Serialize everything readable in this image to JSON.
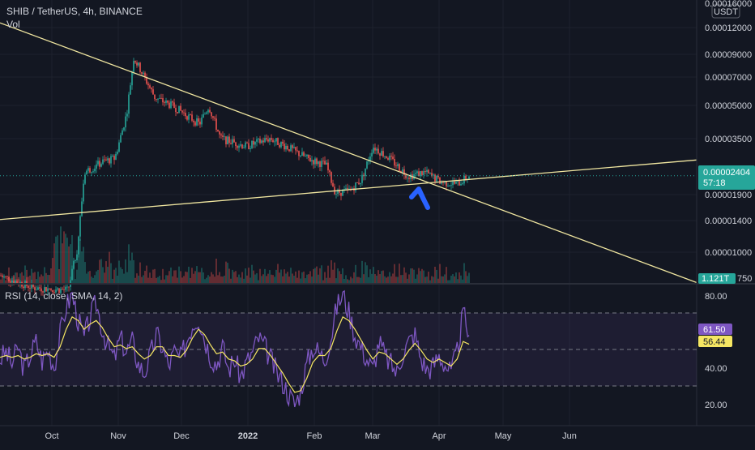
{
  "header": {
    "symbol": "SHIB / TetherUS, 4h, BINANCE",
    "volume_label": "Vol",
    "currency_button": "USDT"
  },
  "colors": {
    "background": "#131722",
    "up": "#26a69a",
    "down": "#ef5350",
    "trendline": "#f0e6a0",
    "rsi_line": "#7e57c2",
    "rsi_ma": "#f5e663",
    "arrow": "#2962ff",
    "last_price_bg": "#26a69a",
    "rsi_badge_bg": "#7e57c2",
    "rsi_ma_badge_bg": "#f5e663"
  },
  "price_axis": {
    "ticks": [
      "0.00016000",
      "0.00012000",
      "0.00009000",
      "0.00007000",
      "0.00005000",
      "0.00003500",
      "0.00001900",
      "0.00001400",
      "0.00001000"
    ],
    "last_price": "0.00002404",
    "countdown": "57:18",
    "volume_badge": "1.121T",
    "volume_tick": "750"
  },
  "rsi": {
    "legend": "RSI (14, close, SMA, 14, 2)",
    "ticks": [
      "80.00",
      "40.00",
      "20.00"
    ],
    "value": "61.50",
    "ma_value": "56.44"
  },
  "time_axis": {
    "ticks": [
      "Oct",
      "Nov",
      "Dec",
      "2022",
      "Feb",
      "Mar",
      "Apr",
      "May",
      "Jun"
    ]
  },
  "chart_data": [
    {
      "type": "candlestick",
      "title": "SHIB / TetherUS, 4h, BINANCE",
      "y_scale": "log",
      "ylim": [
        7.5e-06,
        0.00016
      ],
      "x_range": [
        "2021-09-01",
        "2022-06-25"
      ],
      "close_series": [
        {
          "date": "2021-09-01",
          "value": 8.2e-06
        },
        {
          "date": "2021-09-15",
          "value": 7.2e-06
        },
        {
          "date": "2021-09-30",
          "value": 7e-06
        },
        {
          "date": "2021-10-04",
          "value": 1.1e-05
        },
        {
          "date": "2021-10-07",
          "value": 2.5e-05
        },
        {
          "date": "2021-10-15",
          "value": 2.8e-05
        },
        {
          "date": "2021-10-20",
          "value": 2.9e-05
        },
        {
          "date": "2021-10-25",
          "value": 4.7e-05
        },
        {
          "date": "2021-10-28",
          "value": 8.6e-05
        },
        {
          "date": "2021-10-31",
          "value": 7.5e-05
        },
        {
          "date": "2021-11-06",
          "value": 5.6e-05
        },
        {
          "date": "2021-11-15",
          "value": 5e-05
        },
        {
          "date": "2021-11-25",
          "value": 4.2e-05
        },
        {
          "date": "2021-11-29",
          "value": 5.1e-05
        },
        {
          "date": "2021-12-04",
          "value": 3.6e-05
        },
        {
          "date": "2021-12-15",
          "value": 3.3e-05
        },
        {
          "date": "2021-12-25",
          "value": 3.6e-05
        },
        {
          "date": "2022-01-01",
          "value": 3.3e-05
        },
        {
          "date": "2022-01-10",
          "value": 2.9e-05
        },
        {
          "date": "2022-01-18",
          "value": 2.7e-05
        },
        {
          "date": "2022-01-22",
          "value": 2e-05
        },
        {
          "date": "2022-01-28",
          "value": 2.05e-05
        },
        {
          "date": "2022-02-02",
          "value": 2.3e-05
        },
        {
          "date": "2022-02-07",
          "value": 3.3e-05
        },
        {
          "date": "2022-02-14",
          "value": 2.9e-05
        },
        {
          "date": "2022-02-22",
          "value": 2.4e-05
        },
        {
          "date": "2022-03-01",
          "value": 2.5e-05
        },
        {
          "date": "2022-03-08",
          "value": 2.25e-05
        },
        {
          "date": "2022-03-15",
          "value": 2.2e-05
        },
        {
          "date": "2022-03-20",
          "value": 2.4e-05
        }
      ],
      "trendlines": [
        {
          "from": {
            "date": "2021-09-01",
            "value": 0.000125
          },
          "to": {
            "date": "2022-06-25",
            "value": 7.6e-06
          }
        },
        {
          "from": {
            "date": "2021-09-01",
            "value": 1.5e-05
          },
          "to": {
            "date": "2022-06-25",
            "value": 2.85e-05
          }
        }
      ],
      "last_price": 2.404e-05
    },
    {
      "type": "line",
      "title": "RSI (14, close, SMA, 14, 2)",
      "ylim": [
        10,
        90
      ],
      "bands": [
        30,
        50,
        70
      ],
      "series": [
        {
          "name": "RSI",
          "values": [
            48,
            52,
            45,
            55,
            42,
            50,
            58,
            47,
            53,
            44,
            62,
            78,
            85,
            70,
            60,
            72,
            80,
            65,
            55,
            48,
            60,
            52,
            58,
            45,
            40,
            50,
            62,
            55,
            44,
            52,
            48,
            58,
            68,
            72,
            60,
            50,
            45,
            55,
            42,
            48,
            38,
            46,
            52,
            60,
            55,
            48,
            40,
            35,
            28,
            22,
            30,
            45,
            55,
            52,
            48,
            60,
            78,
            85,
            75,
            62,
            55,
            48,
            42,
            58,
            50,
            45,
            40,
            52,
            58,
            62,
            48,
            42,
            44,
            50,
            45,
            40,
            52,
            74,
            61.5
          ]
        },
        {
          "name": "SMA",
          "values": [
            49,
            50,
            49,
            50,
            48,
            49,
            51,
            50,
            51,
            49,
            55,
            65,
            72,
            70,
            65,
            68,
            70,
            66,
            60,
            55,
            56,
            54,
            55,
            51,
            48,
            50,
            55,
            55,
            50,
            50,
            49,
            53,
            60,
            65,
            62,
            56,
            51,
            52,
            48,
            47,
            44,
            45,
            48,
            54,
            54,
            50,
            45,
            40,
            34,
            29,
            30,
            37,
            46,
            50,
            50,
            54,
            64,
            72,
            70,
            65,
            59,
            53,
            48,
            52,
            51,
            48,
            45,
            48,
            53,
            57,
            53,
            48,
            46,
            48,
            46,
            44,
            48,
            58,
            56.44
          ]
        }
      ]
    }
  ]
}
